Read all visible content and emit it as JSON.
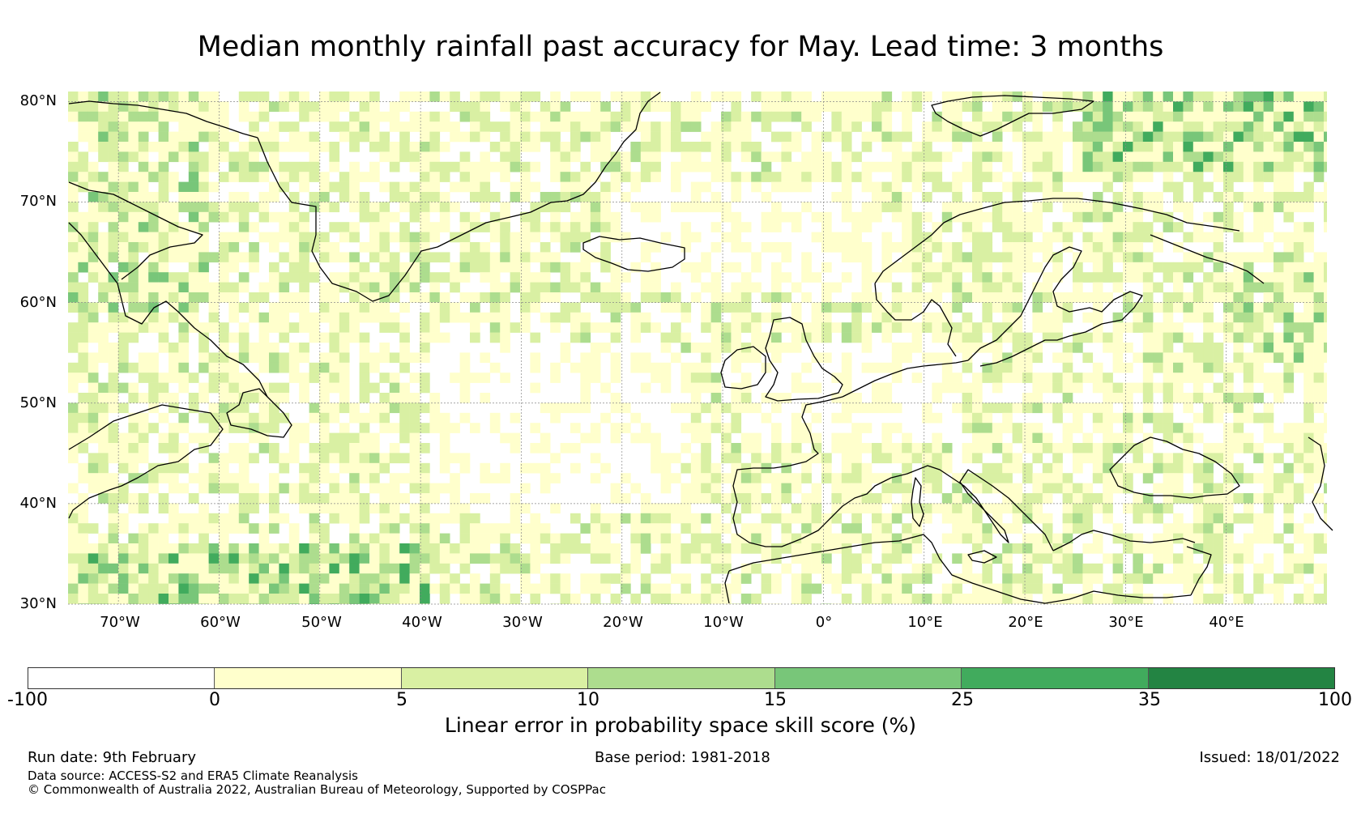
{
  "title": "Median monthly rainfall past accuracy for May. Lead time: 3 months",
  "map": {
    "lat_labels": [
      "80°N",
      "70°N",
      "60°N",
      "50°N",
      "40°N",
      "30°N"
    ],
    "lon_labels": [
      "70°W",
      "60°W",
      "50°W",
      "40°W",
      "30°W",
      "20°W",
      "10°W",
      "0°",
      "10°E",
      "20°E",
      "30°E",
      "40°E"
    ],
    "lon_range": [
      -75,
      50
    ],
    "lat_range": [
      30,
      81
    ],
    "gridlines": true,
    "regions": [
      "Greenland",
      "Iceland",
      "Scandinavia",
      "British Isles",
      "Iberia",
      "Mediterranean",
      "Black Sea",
      "Labrador",
      "Newfoundland",
      "Svalbard"
    ]
  },
  "colorbar": {
    "label": "Linear error in probability space skill score (%)",
    "ticks": [
      "-100",
      "0",
      "5",
      "10",
      "15",
      "25",
      "35",
      "100"
    ],
    "colors": [
      "#ffffff",
      "#ffffcc",
      "#d9f0a3",
      "#addd8e",
      "#78c679",
      "#41ab5d",
      "#238443"
    ],
    "bounds": [
      -100,
      0,
      5,
      10,
      15,
      25,
      35,
      100
    ]
  },
  "footer": {
    "run_date": "Run date: 9th February",
    "base_period": "Base period: 1981-2018",
    "issued": "Issued: 18/01/2022",
    "data_source": "Data source: ACCESS-S2 and ERA5 Climate Reanalysis",
    "copyright": "© Commonwealth of Australia 2022, Australian Bureau of Meteorology, Supported by COSPPac"
  },
  "colors": {
    "coastline": "#000000",
    "gridline": "#888888"
  }
}
